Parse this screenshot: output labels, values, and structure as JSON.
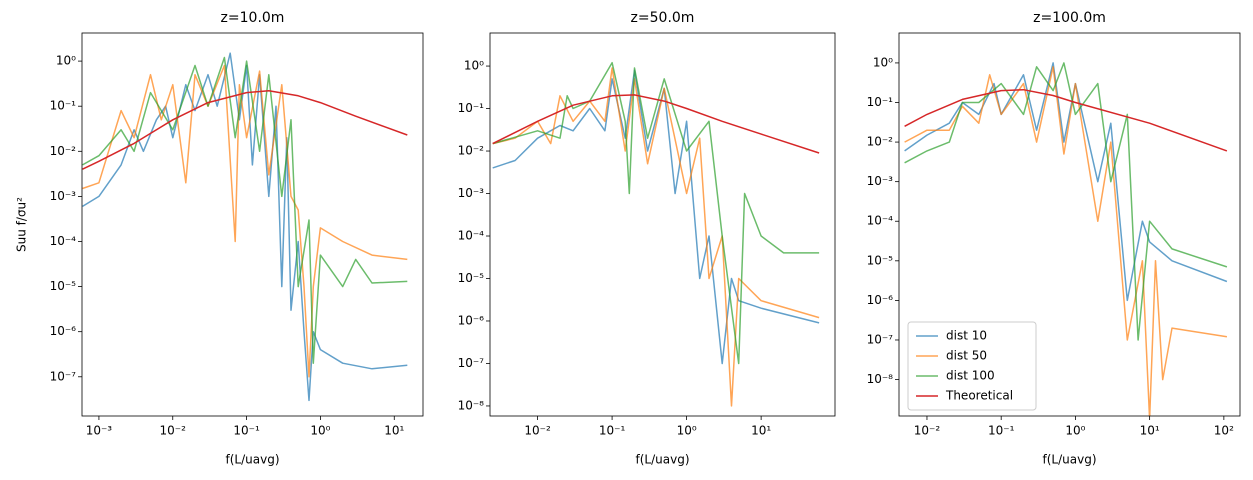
{
  "chart_data": [
    {
      "type": "line",
      "title": "z=10.0m",
      "xlabel": "f(L/uavg)",
      "ylabel": "Suu f/σu²",
      "xscale": "log",
      "yscale": "log",
      "xlim": [
        0.00059,
        24.5
      ],
      "ylim": [
        1.35e-08,
        4.2
      ],
      "xticks": [
        {
          "value": 0.001,
          "label": "10⁻³"
        },
        {
          "value": 0.01,
          "label": "10⁻²"
        },
        {
          "value": 0.1,
          "label": "10⁻¹"
        },
        {
          "value": 1,
          "label": "10⁰"
        },
        {
          "value": 10,
          "label": "10¹"
        }
      ],
      "yticks": [
        {
          "value": 1e-07,
          "label": "10⁻⁷"
        },
        {
          "value": 1e-06,
          "label": "10⁻⁶"
        },
        {
          "value": 1e-05,
          "label": "10⁻⁵"
        },
        {
          "value": 0.0001,
          "label": "10⁻⁴"
        },
        {
          "value": 0.001,
          "label": "10⁻³"
        },
        {
          "value": 0.01,
          "label": "10⁻²"
        },
        {
          "value": 0.1,
          "label": "10⁻¹"
        },
        {
          "value": 1,
          "label": "10⁰"
        }
      ],
      "series": [
        {
          "color": "#1f77b4",
          "alpha": 0.7,
          "x": [
            0.0006,
            0.001,
            0.002,
            0.003,
            0.004,
            0.006,
            0.008,
            0.01,
            0.015,
            0.02,
            0.03,
            0.04,
            0.06,
            0.08,
            0.1,
            0.12,
            0.15,
            0.2,
            0.25,
            0.3,
            0.35,
            0.4,
            0.5,
            0.6,
            0.7,
            0.8,
            1,
            2,
            5,
            15
          ],
          "values": [
            0.0006,
            0.001,
            0.005,
            0.03,
            0.01,
            0.05,
            0.1,
            0.02,
            0.3,
            0.08,
            0.5,
            0.1,
            1.5,
            0.05,
            0.8,
            0.005,
            0.5,
            0.001,
            0.1,
            1e-05,
            0.02,
            3e-06,
            0.0001,
            1e-06,
            3e-08,
            1e-06,
            4e-07,
            2e-07,
            1.5e-07,
            1.8e-07
          ]
        },
        {
          "color": "#ff7f0e",
          "alpha": 0.7,
          "x": [
            0.0006,
            0.001,
            0.002,
            0.003,
            0.005,
            0.007,
            0.01,
            0.015,
            0.02,
            0.03,
            0.05,
            0.07,
            0.08,
            0.1,
            0.15,
            0.2,
            0.3,
            0.4,
            0.5,
            0.6,
            0.7,
            0.8,
            1,
            2,
            5,
            15
          ],
          "values": [
            0.0015,
            0.002,
            0.08,
            0.02,
            0.5,
            0.05,
            0.3,
            0.002,
            0.5,
            0.1,
            0.8,
            0.0001,
            0.3,
            0.02,
            0.6,
            0.003,
            0.3,
            0.001,
            0.0005,
            1e-05,
            1e-07,
            1e-05,
            0.0002,
            0.0001,
            5e-05,
            4e-05
          ]
        },
        {
          "color": "#2ca02c",
          "alpha": 0.7,
          "x": [
            0.0006,
            0.001,
            0.002,
            0.003,
            0.005,
            0.01,
            0.02,
            0.03,
            0.05,
            0.07,
            0.1,
            0.15,
            0.2,
            0.3,
            0.4,
            0.5,
            0.7,
            0.8,
            1,
            2,
            3,
            5,
            15
          ],
          "values": [
            0.005,
            0.008,
            0.03,
            0.01,
            0.2,
            0.03,
            0.8,
            0.1,
            1.2,
            0.02,
            1,
            0.01,
            0.5,
            0.001,
            0.05,
            1e-05,
            0.0003,
            2e-07,
            5e-05,
            1e-05,
            4e-05,
            1.2e-05,
            1.3e-05
          ]
        },
        {
          "color": "#d62728",
          "alpha": 1,
          "x": [
            0.0006,
            0.001,
            0.003,
            0.01,
            0.03,
            0.1,
            0.2,
            0.5,
            1,
            3,
            15
          ],
          "values": [
            0.004,
            0.006,
            0.015,
            0.05,
            0.12,
            0.2,
            0.22,
            0.17,
            0.12,
            0.06,
            0.023
          ]
        }
      ]
    },
    {
      "type": "line",
      "title": "z=50.0m",
      "xlabel": "f(L/uavg)",
      "xscale": "log",
      "yscale": "log",
      "xlim": [
        0.0023,
        98
      ],
      "ylim": [
        5.8e-09,
        6
      ],
      "xticks": [
        {
          "value": 0.01,
          "label": "10⁻²"
        },
        {
          "value": 0.1,
          "label": "10⁻¹"
        },
        {
          "value": 1,
          "label": "10⁰"
        },
        {
          "value": 10,
          "label": "10¹"
        }
      ],
      "yticks": [
        {
          "value": 1e-08,
          "label": "10⁻⁸"
        },
        {
          "value": 1e-07,
          "label": "10⁻⁷"
        },
        {
          "value": 1e-06,
          "label": "10⁻⁶"
        },
        {
          "value": 1e-05,
          "label": "10⁻⁵"
        },
        {
          "value": 0.0001,
          "label": "10⁻⁴"
        },
        {
          "value": 0.001,
          "label": "10⁻³"
        },
        {
          "value": 0.01,
          "label": "10⁻²"
        },
        {
          "value": 0.1,
          "label": "10⁻¹"
        },
        {
          "value": 1,
          "label": "10⁰"
        }
      ],
      "series": [
        {
          "color": "#1f77b4",
          "alpha": 0.7,
          "x": [
            0.0025,
            0.005,
            0.01,
            0.02,
            0.03,
            0.05,
            0.08,
            0.1,
            0.15,
            0.2,
            0.3,
            0.5,
            0.7,
            1,
            1.5,
            2,
            3,
            4,
            5,
            10,
            60
          ],
          "values": [
            0.004,
            0.006,
            0.02,
            0.04,
            0.03,
            0.1,
            0.03,
            0.5,
            0.02,
            0.8,
            0.01,
            0.3,
            0.001,
            0.05,
            1e-05,
            0.0001,
            1e-07,
            1e-05,
            3e-06,
            2e-06,
            9e-07
          ]
        },
        {
          "color": "#ff7f0e",
          "alpha": 0.7,
          "x": [
            0.0025,
            0.005,
            0.01,
            0.015,
            0.02,
            0.03,
            0.05,
            0.08,
            0.1,
            0.15,
            0.2,
            0.3,
            0.5,
            1,
            1.5,
            2,
            3,
            4,
            5,
            10,
            60
          ],
          "values": [
            0.015,
            0.02,
            0.05,
            0.015,
            0.2,
            0.05,
            0.15,
            0.05,
            0.9,
            0.01,
            0.5,
            0.005,
            0.3,
            0.001,
            0.02,
            1e-05,
            0.0001,
            1e-08,
            1e-05,
            3e-06,
            1.2e-06
          ]
        },
        {
          "color": "#2ca02c",
          "alpha": 0.7,
          "x": [
            0.0025,
            0.01,
            0.02,
            0.025,
            0.03,
            0.05,
            0.1,
            0.15,
            0.17,
            0.2,
            0.3,
            0.5,
            1,
            2,
            3,
            5,
            6,
            10,
            20,
            60
          ],
          "values": [
            0.015,
            0.03,
            0.02,
            0.2,
            0.1,
            0.15,
            1.2,
            0.05,
            0.001,
            0.9,
            0.02,
            0.5,
            0.01,
            0.05,
            0.0001,
            1e-07,
            0.001,
            0.0001,
            4e-05,
            4e-05
          ]
        },
        {
          "color": "#d62728",
          "alpha": 1,
          "x": [
            0.0025,
            0.01,
            0.03,
            0.1,
            0.2,
            0.5,
            1,
            3,
            10,
            60
          ],
          "values": [
            0.015,
            0.05,
            0.12,
            0.2,
            0.21,
            0.15,
            0.1,
            0.05,
            0.025,
            0.009
          ]
        }
      ]
    },
    {
      "type": "line",
      "title": "z=100.0m",
      "xlabel": "f(L/uavg)",
      "xscale": "log",
      "yscale": "log",
      "xlim": [
        0.0042,
        165
      ],
      "ylim": [
        1.2e-09,
        5.7
      ],
      "legend": "lower left",
      "xticks": [
        {
          "value": 0.01,
          "label": "10⁻²"
        },
        {
          "value": 0.1,
          "label": "10⁻¹"
        },
        {
          "value": 1,
          "label": "10⁰"
        },
        {
          "value": 10,
          "label": "10¹"
        },
        {
          "value": 100,
          "label": "10²"
        }
      ],
      "yticks": [
        {
          "value": 1e-08,
          "label": "10⁻⁸"
        },
        {
          "value": 1e-07,
          "label": "10⁻⁷"
        },
        {
          "value": 1e-06,
          "label": "10⁻⁶"
        },
        {
          "value": 1e-05,
          "label": "10⁻⁵"
        },
        {
          "value": 0.0001,
          "label": "10⁻⁴"
        },
        {
          "value": 0.001,
          "label": "10⁻³"
        },
        {
          "value": 0.01,
          "label": "10⁻²"
        },
        {
          "value": 0.1,
          "label": "10⁻¹"
        },
        {
          "value": 1,
          "label": "10⁰"
        }
      ],
      "series": [
        {
          "name": "dist 10",
          "color": "#1f77b4",
          "alpha": 0.7,
          "x": [
            0.005,
            0.01,
            0.02,
            0.03,
            0.05,
            0.08,
            0.1,
            0.2,
            0.3,
            0.5,
            0.7,
            1,
            2,
            3,
            5,
            8,
            10,
            20,
            110
          ],
          "values": [
            0.006,
            0.015,
            0.03,
            0.1,
            0.05,
            0.3,
            0.05,
            0.5,
            0.02,
            1,
            0.01,
            0.3,
            0.001,
            0.03,
            1e-06,
            0.0001,
            3e-05,
            1e-05,
            3e-06
          ]
        },
        {
          "name": "dist 50",
          "color": "#ff7f0e",
          "alpha": 0.7,
          "x": [
            0.005,
            0.01,
            0.02,
            0.03,
            0.05,
            0.07,
            0.1,
            0.2,
            0.3,
            0.5,
            0.7,
            1,
            2,
            3,
            5,
            8,
            10,
            12,
            15,
            20,
            110
          ],
          "values": [
            0.01,
            0.02,
            0.02,
            0.08,
            0.03,
            0.5,
            0.05,
            0.3,
            0.01,
            0.8,
            0.005,
            0.3,
            0.0001,
            0.01,
            1e-07,
            1e-05,
            1e-09,
            1e-05,
            1e-08,
            2e-07,
            1.2e-07
          ]
        },
        {
          "name": "dist 100",
          "color": "#2ca02c",
          "alpha": 0.7,
          "x": [
            0.005,
            0.01,
            0.02,
            0.03,
            0.05,
            0.1,
            0.2,
            0.3,
            0.5,
            0.7,
            1,
            2,
            3,
            5,
            7,
            10,
            20,
            110
          ],
          "values": [
            0.003,
            0.006,
            0.01,
            0.1,
            0.1,
            0.3,
            0.05,
            0.8,
            0.2,
            1,
            0.05,
            0.3,
            0.001,
            0.05,
            1e-07,
            0.0001,
            2e-05,
            7e-06
          ]
        },
        {
          "name": "Theoretical",
          "color": "#d62728",
          "alpha": 1,
          "x": [
            0.005,
            0.01,
            0.03,
            0.1,
            0.2,
            0.5,
            1,
            10,
            110
          ],
          "values": [
            0.025,
            0.05,
            0.12,
            0.2,
            0.21,
            0.15,
            0.1,
            0.03,
            0.006
          ]
        }
      ]
    }
  ]
}
